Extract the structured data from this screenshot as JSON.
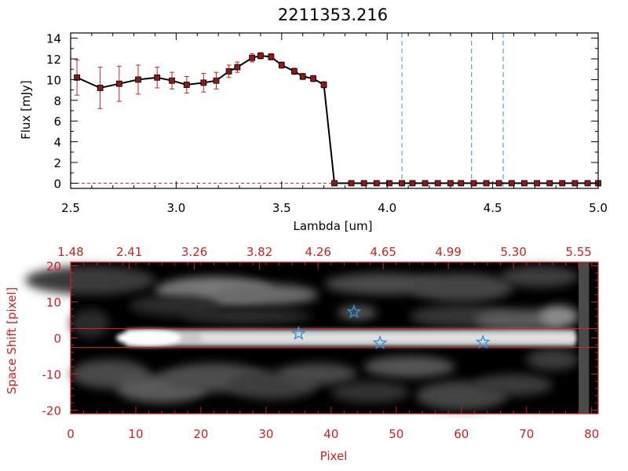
{
  "chart_data": [
    {
      "type": "line",
      "title": "2211353.216",
      "xlabel": "Lambda [um]",
      "ylabel": "Flux [mJy]",
      "xlim": [
        2.5,
        5.0
      ],
      "ylim": [
        -0.5,
        14.5
      ],
      "xticks": [
        "2.5",
        "3.0",
        "3.5",
        "4.0",
        "4.5",
        "5.0"
      ],
      "yticks": [
        "0",
        "2",
        "4",
        "6",
        "8",
        "10",
        "12",
        "14"
      ],
      "colors": {
        "line": "#000000",
        "marker": "#8b1a1a",
        "errorbar": "#cc2222",
        "vline": "#3a8fd6",
        "zero_line": "#cc2222"
      },
      "series": [
        {
          "x": [
            2.53,
            2.64,
            2.73,
            2.82,
            2.91,
            2.98,
            3.05,
            3.13,
            3.19,
            3.25,
            3.29,
            3.36,
            3.4,
            3.45,
            3.5,
            3.56,
            3.6,
            3.65,
            3.7,
            3.75,
            3.83,
            3.89,
            3.95,
            4.01,
            4.07,
            4.12,
            4.18,
            4.24,
            4.3,
            4.35,
            4.41,
            4.47,
            4.53,
            4.59,
            4.65,
            4.71,
            4.77,
            4.83,
            4.89,
            4.95,
            5.0
          ],
          "y": [
            10.2,
            9.2,
            9.6,
            10.0,
            10.2,
            9.9,
            9.5,
            9.7,
            9.9,
            10.8,
            11.2,
            12.1,
            12.3,
            12.2,
            11.4,
            10.8,
            10.3,
            10.1,
            9.5,
            0.0,
            0.0,
            0.0,
            0.0,
            0.0,
            0.0,
            0.0,
            0.0,
            0.0,
            0.0,
            0.0,
            0.0,
            0.0,
            0.0,
            0.0,
            0.0,
            0.0,
            0.0,
            0.0,
            0.0,
            0.0,
            0.0
          ],
          "yerr": [
            1.7,
            2.0,
            1.7,
            1.4,
            1.0,
            0.8,
            0.8,
            0.9,
            0.8,
            0.6,
            0.5,
            0.4,
            0.3,
            0.3,
            0.3,
            0.3,
            0.3,
            0.3,
            0.3,
            0,
            0,
            0,
            0,
            0,
            0,
            0,
            0,
            0,
            0,
            0,
            0,
            0,
            0,
            0,
            0,
            0,
            0,
            0,
            0,
            0,
            0
          ]
        }
      ],
      "vlines": [
        4.07,
        4.4,
        4.55
      ]
    },
    {
      "type": "heatmap",
      "xlabel": "Pixel",
      "ylabel": "Space Shift [pixel]",
      "xlim": [
        0,
        81
      ],
      "ylim": [
        -21,
        21
      ],
      "xticks": [
        "0",
        "10",
        "20",
        "30",
        "40",
        "50",
        "60",
        "70",
        "80"
      ],
      "yticks": [
        "-20",
        "-10",
        "0",
        "10",
        "20"
      ],
      "top_axis_ticks": [
        {
          "pixel": 0,
          "label": "1.48"
        },
        {
          "pixel": 9,
          "label": "2.41"
        },
        {
          "pixel": 19,
          "label": "3.26"
        },
        {
          "pixel": 29,
          "label": "3.82"
        },
        {
          "pixel": 38,
          "label": "4.26"
        },
        {
          "pixel": 48,
          "label": "4.65"
        },
        {
          "pixel": 58,
          "label": "4.99"
        },
        {
          "pixel": 68,
          "label": "5.30"
        },
        {
          "pixel": 78,
          "label": "5.55"
        }
      ],
      "aperture_lines": [
        2.6,
        -2.6
      ],
      "stars": [
        {
          "x": 35.0,
          "y": 1.2
        },
        {
          "x": 43.5,
          "y": 7.2
        },
        {
          "x": 47.5,
          "y": -1.4
        },
        {
          "x": 63.3,
          "y": -1.2
        }
      ],
      "colors": {
        "axis": "#cc2222",
        "aperture": "#cc2222",
        "star": "#3a8fd6"
      }
    }
  ]
}
